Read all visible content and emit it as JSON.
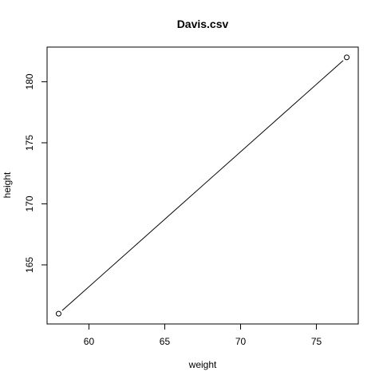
{
  "chart_data": {
    "type": "line",
    "title": "Davis.csv",
    "xlabel": "weight",
    "ylabel": "height",
    "x": [
      58,
      77
    ],
    "y": [
      161,
      182
    ],
    "xlim": [
      57.24,
      77.76
    ],
    "ylim": [
      160.16,
      182.84
    ],
    "xticks": [
      60,
      65,
      70,
      75
    ],
    "yticks": [
      165,
      170,
      175,
      180
    ],
    "marker": "open-circle",
    "grid": false,
    "legend": "none",
    "line_color": "#000000",
    "background": "#ffffff"
  }
}
